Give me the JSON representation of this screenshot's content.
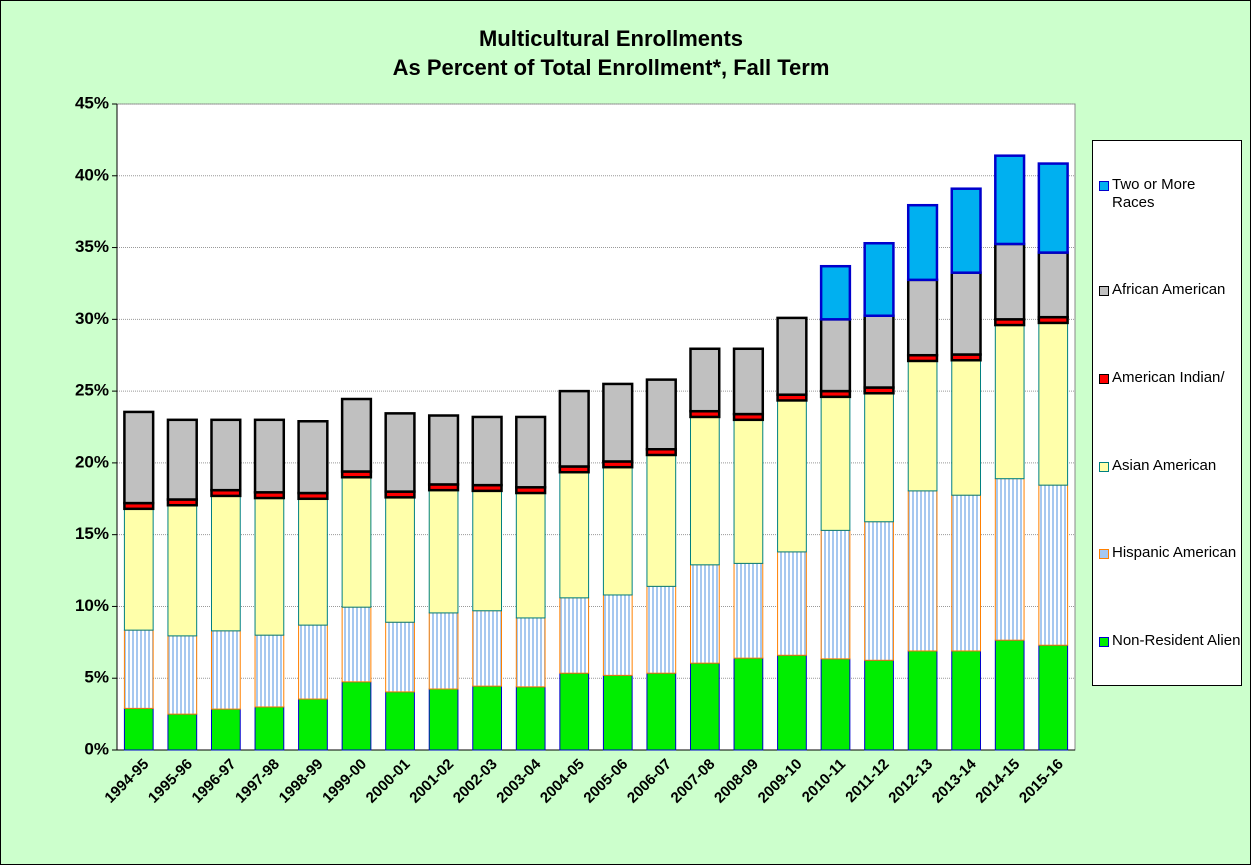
{
  "chart_data": {
    "type": "stacked-bar",
    "title": "Multicultural Enrollments",
    "subtitle": "As Percent of Total Enrollment*, Fall Term",
    "categories": [
      "1994-95",
      "1995-96",
      "1996-97",
      "1997-98",
      "1998-99",
      "1999-00",
      "2000-01",
      "2001-02",
      "2002-03",
      "2003-04",
      "2004-05",
      "2005-06",
      "2006-07",
      "2007-08",
      "2008-09",
      "2009-10",
      "2010-11",
      "2011-12",
      "2012-13",
      "2013-14",
      "2014-15",
      "2015-16"
    ],
    "series": [
      {
        "name": "Non-Resident Alien",
        "color": "#00ee00",
        "stroke": "#0000cc",
        "values": [
          2.9,
          2.5,
          2.85,
          3.0,
          3.55,
          4.75,
          4.05,
          4.25,
          4.45,
          4.4,
          5.35,
          5.2,
          5.35,
          6.05,
          6.4,
          6.6,
          6.35,
          6.25,
          6.9,
          6.9,
          7.65,
          7.3
        ]
      },
      {
        "name": "Hispanic American",
        "color": "#a6c8f0",
        "stroke": "#ff8000",
        "values": [
          5.45,
          5.45,
          5.45,
          5.0,
          5.15,
          5.2,
          4.85,
          5.3,
          5.25,
          4.8,
          5.25,
          5.6,
          6.05,
          6.85,
          6.6,
          7.2,
          8.95,
          9.65,
          11.15,
          10.85,
          11.25,
          11.15
        ]
      },
      {
        "name": "Asian American",
        "color": "#ffffaa",
        "stroke": "#008080",
        "values": [
          8.45,
          9.1,
          9.4,
          9.55,
          8.8,
          9.05,
          8.7,
          8.55,
          8.35,
          8.7,
          8.75,
          8.9,
          9.15,
          10.3,
          10.0,
          10.55,
          9.3,
          8.95,
          9.05,
          9.4,
          10.7,
          11.3
        ]
      },
      {
        "name": "American Indian/",
        "color": "#ff0000",
        "stroke": "#000000",
        "values": [
          0.4,
          0.4,
          0.4,
          0.4,
          0.4,
          0.4,
          0.4,
          0.4,
          0.4,
          0.4,
          0.4,
          0.4,
          0.4,
          0.4,
          0.4,
          0.4,
          0.4,
          0.4,
          0.4,
          0.4,
          0.4,
          0.4
        ]
      },
      {
        "name": "African American",
        "color": "#c0c0c0",
        "stroke": "#000000",
        "values": [
          6.35,
          5.55,
          4.9,
          5.05,
          5.0,
          5.05,
          5.45,
          4.8,
          4.75,
          4.9,
          5.25,
          5.4,
          4.85,
          4.35,
          4.55,
          5.35,
          5.0,
          5.0,
          5.25,
          5.7,
          5.25,
          4.5
        ]
      },
      {
        "name": "Two or More Races",
        "color": "#00b0f0",
        "stroke": "#0000cc",
        "values": [
          null,
          null,
          null,
          null,
          null,
          null,
          null,
          null,
          null,
          null,
          null,
          null,
          null,
          null,
          null,
          null,
          3.7,
          5.05,
          5.2,
          5.85,
          6.15,
          6.2
        ]
      }
    ],
    "ylim": [
      0,
      45
    ],
    "yticks": [
      {
        "value": 0,
        "label": "0%"
      },
      {
        "value": 5,
        "label": "5%"
      },
      {
        "value": 10,
        "label": "10%"
      },
      {
        "value": 15,
        "label": "15%"
      },
      {
        "value": 20,
        "label": "20%"
      },
      {
        "value": 25,
        "label": "25%"
      },
      {
        "value": 30,
        "label": "30%"
      },
      {
        "value": 35,
        "label": "35%"
      },
      {
        "value": 40,
        "label": "40%"
      },
      {
        "value": 45,
        "label": "45%"
      }
    ],
    "grid": true
  }
}
